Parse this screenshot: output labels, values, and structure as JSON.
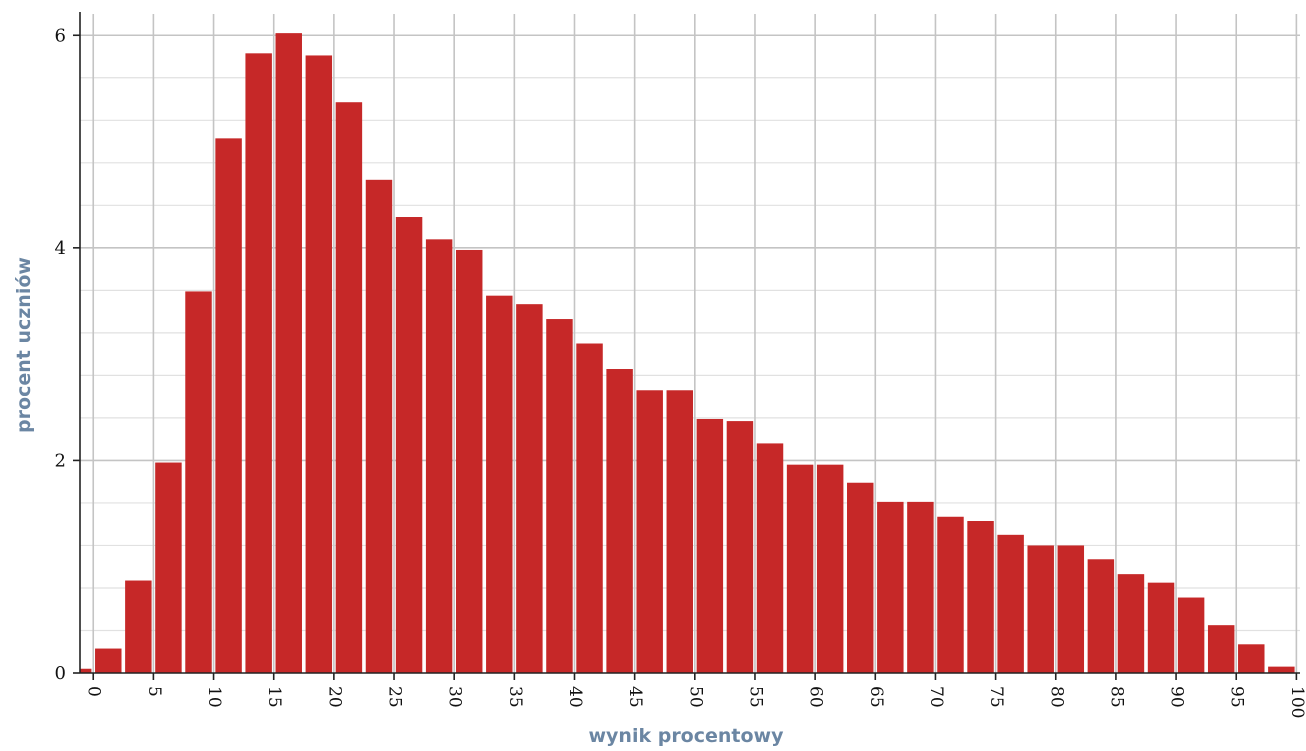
{
  "chart_data": {
    "type": "bar",
    "xlabel": "wynik procentowy",
    "ylabel": "procent uczniów",
    "ylim": [
      0,
      6.2
    ],
    "xlim": [
      -1.1,
      100.3
    ],
    "y_ticks": [
      0,
      2,
      4,
      6
    ],
    "y_minor_ticks": [
      0.4,
      0.8,
      1.2,
      1.6,
      2.4,
      2.8,
      3.2,
      3.6,
      4.4,
      4.8,
      5.2,
      5.6
    ],
    "x_ticks": [
      0,
      5,
      10,
      15,
      20,
      25,
      30,
      35,
      40,
      45,
      50,
      55,
      60,
      65,
      70,
      75,
      80,
      85,
      90,
      95,
      100
    ],
    "grid": true,
    "bar_color": "#c62828",
    "x": [
      -1.25,
      1.25,
      3.75,
      6.25,
      8.75,
      11.25,
      13.75,
      16.25,
      18.75,
      21.25,
      23.75,
      26.25,
      28.75,
      31.25,
      33.75,
      36.25,
      38.75,
      41.25,
      43.75,
      46.25,
      48.75,
      51.25,
      53.75,
      56.25,
      58.75,
      61.25,
      63.75,
      66.25,
      68.75,
      71.25,
      73.75,
      76.25,
      78.75,
      81.25,
      83.75,
      86.25,
      88.75,
      91.25,
      93.75,
      96.25,
      98.75
    ],
    "values": [
      0.04,
      0.23,
      0.87,
      1.98,
      3.59,
      5.03,
      5.83,
      6.02,
      5.81,
      5.37,
      4.64,
      4.29,
      4.08,
      3.98,
      3.55,
      3.47,
      3.33,
      3.1,
      2.86,
      2.66,
      2.66,
      2.39,
      2.37,
      2.16,
      1.96,
      1.96,
      1.79,
      1.61,
      1.61,
      1.47,
      1.43,
      1.3,
      1.2,
      1.2,
      1.07,
      0.93,
      0.85,
      0.71,
      0.45,
      0.27,
      0.06
    ]
  }
}
